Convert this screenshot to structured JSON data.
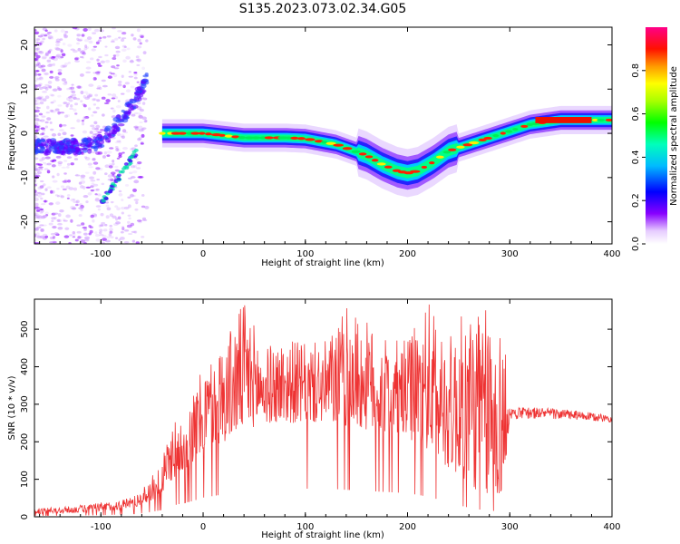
{
  "title": "S135.2023.073.02.34.G05",
  "chart_data": [
    {
      "type": "heatmap",
      "xlabel": "Height of straight line (km)",
      "ylabel": "Frequency (Hz)",
      "xlim": [
        -165,
        400
      ],
      "ylim": [
        -25,
        24
      ],
      "xticks": [
        -100,
        0,
        100,
        200,
        300,
        400
      ],
      "yticks": [
        -20,
        -10,
        0,
        10,
        20
      ],
      "colorbar": {
        "label": "Normalized spectral amplitude",
        "range": [
          0,
          1
        ],
        "ticks": [
          0.0,
          0.2,
          0.4,
          0.6,
          0.8
        ],
        "colormap": "rainbow"
      },
      "ridge": {
        "x": [
          -40,
          0,
          40,
          80,
          100,
          130,
          160,
          175,
          190,
          200,
          210,
          225,
          240,
          260,
          280,
          300,
          320,
          350,
          400
        ],
        "frequency": [
          0,
          0,
          -1,
          -1,
          -1.2,
          -2.5,
          -5,
          -7,
          -8.5,
          -9,
          -8.5,
          -6.5,
          -4,
          -2.5,
          -1,
          0.5,
          2,
          3,
          3
        ]
      },
      "diagonal_band": {
        "x": [
          -165,
          -140,
          -120,
          -100,
          -80,
          -65,
          -55
        ],
        "frequency": [
          -3,
          -3,
          -3,
          -2,
          3,
          8,
          12
        ]
      }
    },
    {
      "type": "line",
      "xlabel": "Height of straight line (km)",
      "ylabel": "SNR (10 * v/v)",
      "xlim": [
        -165,
        400
      ],
      "ylim": [
        0,
        580
      ],
      "xticks": [
        -100,
        0,
        100,
        200,
        300,
        400
      ],
      "yticks": [
        0,
        100,
        200,
        300,
        400,
        500
      ],
      "line_color": "#ee3333",
      "envelope": {
        "x": [
          -165,
          -130,
          -100,
          -80,
          -60,
          -50,
          -40,
          -30,
          -20,
          -10,
          0,
          20,
          40,
          60,
          80,
          100,
          120,
          140,
          160,
          180,
          200,
          220,
          240,
          260,
          280,
          295,
          300,
          330,
          360,
          400
        ],
        "lower": [
          8,
          10,
          14,
          20,
          30,
          45,
          60,
          100,
          120,
          140,
          170,
          200,
          230,
          250,
          250,
          250,
          250,
          240,
          230,
          220,
          210,
          180,
          130,
          80,
          50,
          60,
          260,
          262,
          258,
          252
        ],
        "upper": [
          22,
          28,
          38,
          45,
          70,
          110,
          150,
          260,
          290,
          330,
          400,
          470,
          580,
          450,
          480,
          460,
          470,
          560,
          520,
          470,
          470,
          580,
          480,
          570,
          550,
          500,
          292,
          292,
          285,
          270
        ]
      }
    }
  ]
}
